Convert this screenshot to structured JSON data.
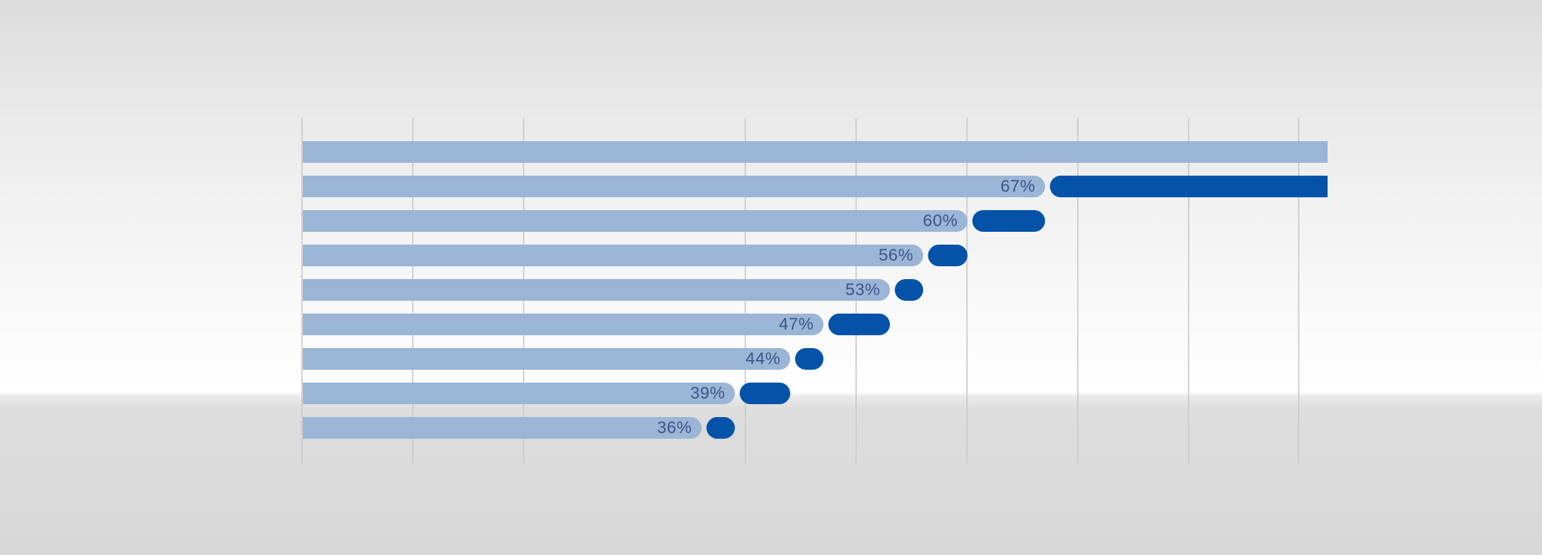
{
  "colors": {
    "base_bar": "#9bb5d6",
    "cap": "#0553a8",
    "gridline": "#c9c9c9",
    "label": "#3b5488"
  },
  "chart_data": {
    "type": "bar",
    "orientation": "horizontal",
    "title": "",
    "xlabel": "",
    "ylabel": "",
    "grid": true,
    "xlim": [
      0,
      92.5
    ],
    "rows": [
      {
        "base": 92.5,
        "cap": 0,
        "label": ""
      },
      {
        "base": 67,
        "cap": 26.5,
        "label": "67%"
      },
      {
        "base": 60,
        "cap": 7,
        "label": "60%"
      },
      {
        "base": 56,
        "cap": 4,
        "label": "56%"
      },
      {
        "base": 53,
        "cap": 3,
        "label": "53%"
      },
      {
        "base": 47,
        "cap": 6,
        "label": "47%"
      },
      {
        "base": 44,
        "cap": 3,
        "label": "44%"
      },
      {
        "base": 39,
        "cap": 5,
        "label": "39%"
      },
      {
        "base": 36,
        "cap": 3,
        "label": "36%"
      }
    ]
  }
}
